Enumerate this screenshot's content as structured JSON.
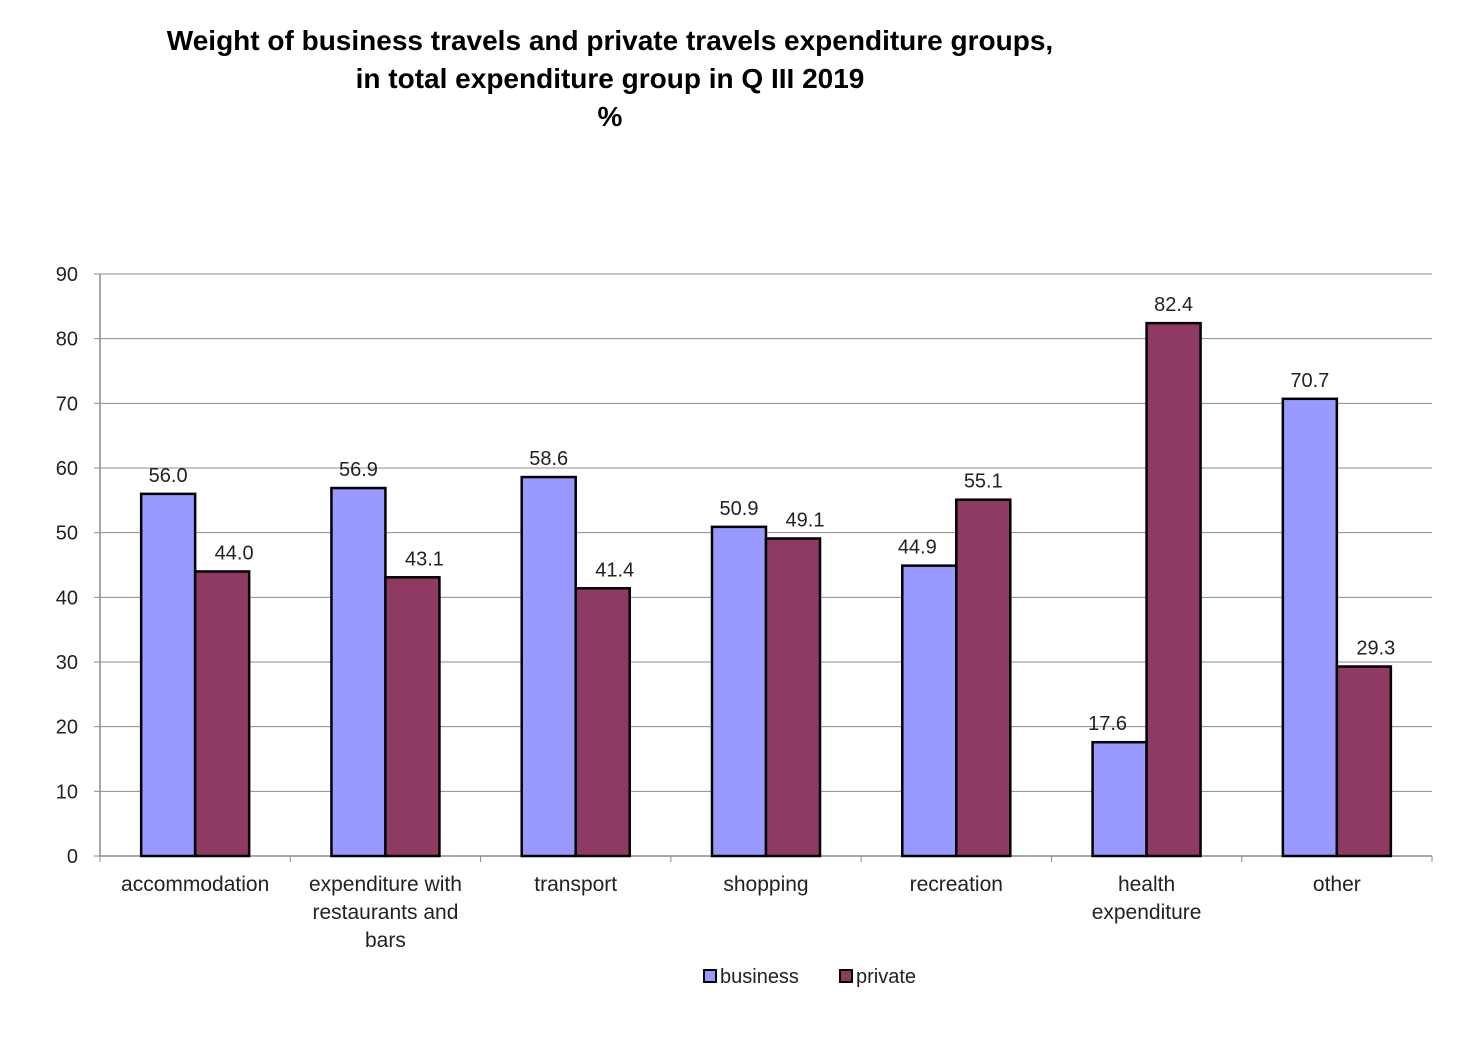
{
  "title": {
    "line1": "Weight of business travels and private travels expenditure groups,",
    "line2": "in total expenditure group in Q III 2019",
    "line3": "%"
  },
  "chart_data": {
    "type": "bar",
    "categories": [
      [
        "accommodation"
      ],
      [
        "expenditure with",
        "restaurants and",
        "bars"
      ],
      [
        "transport"
      ],
      [
        "shopping"
      ],
      [
        "recreation"
      ],
      [
        "health",
        "expenditure"
      ],
      [
        "other"
      ]
    ],
    "series": [
      {
        "name": "business",
        "color": "#9999FF",
        "values": [
          56.0,
          56.9,
          58.6,
          50.9,
          44.9,
          17.6,
          70.7
        ],
        "labels": [
          "56.0",
          "56.9",
          "58.6",
          "50.9",
          "44.9",
          "17.6",
          "70.7"
        ]
      },
      {
        "name": "private",
        "color": "#8E3A62",
        "values": [
          44.0,
          43.1,
          41.4,
          49.1,
          55.1,
          82.4,
          29.3
        ],
        "labels": [
          "44.0",
          "43.1",
          "41.4",
          "49.1",
          "55.1",
          "82.4",
          "29.3"
        ]
      }
    ],
    "ylim": [
      0,
      90
    ],
    "yticks": [
      "0",
      "10",
      "20",
      "30",
      "40",
      "50",
      "60",
      "70",
      "80",
      "90"
    ],
    "grid": true,
    "legend": "bottom"
  }
}
